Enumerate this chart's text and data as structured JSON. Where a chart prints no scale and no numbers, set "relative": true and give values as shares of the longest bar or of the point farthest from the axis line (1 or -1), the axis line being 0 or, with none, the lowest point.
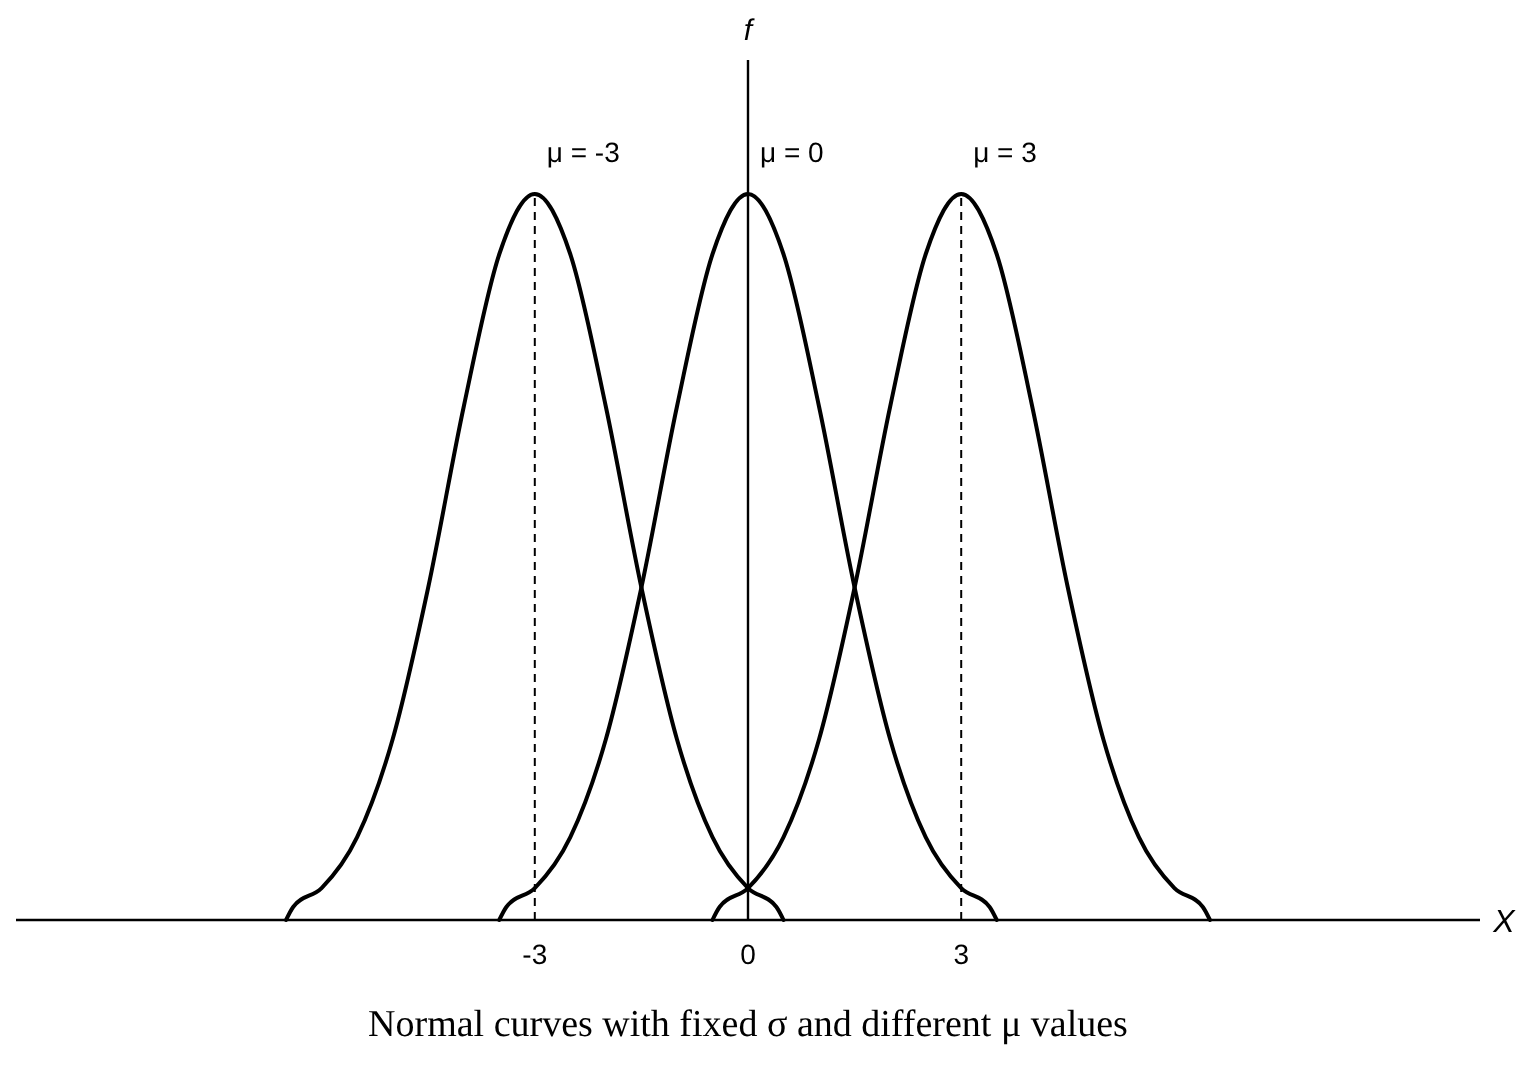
{
  "chart_data": {
    "type": "line",
    "relative": true,
    "title": "Normal curves with fixed σ and different μ values",
    "xlabel": "X",
    "ylabel": "f",
    "xlim": [
      -10.3,
      10.3
    ],
    "xticks": [
      -3,
      0,
      3
    ],
    "tick_labels": "x",
    "grid": false,
    "marker": "none",
    "line_style": "solid",
    "series": [
      {
        "color": "#000000",
        "x": [
          -6.5,
          -6.4,
          -6,
          -5.5,
          -5,
          -4.5,
          -4,
          -3.5,
          -3,
          -2.5,
          -2,
          -1.5,
          -1,
          -0.5,
          0,
          0.4,
          0.5
        ],
        "values": [
          0,
          0.018,
          0.044,
          0.114,
          0.249,
          0.458,
          0.707,
          0.917,
          1,
          0.917,
          0.707,
          0.458,
          0.249,
          0.114,
          0.044,
          0.018,
          0
        ]
      },
      {
        "color": "#000000",
        "x": [
          -3.5,
          -3.4,
          -3,
          -2.5,
          -2,
          -1.5,
          -1,
          -0.5,
          0,
          0.5,
          1,
          1.5,
          2,
          2.5,
          3,
          3.4,
          3.5
        ],
        "values": [
          0,
          0.018,
          0.044,
          0.114,
          0.249,
          0.458,
          0.707,
          0.917,
          1,
          0.917,
          0.707,
          0.458,
          0.249,
          0.114,
          0.044,
          0.018,
          0
        ]
      },
      {
        "color": "#000000",
        "x": [
          -0.5,
          -0.4,
          0,
          0.5,
          1,
          1.5,
          2,
          2.5,
          3,
          3.5,
          4,
          4.5,
          5,
          5.5,
          6,
          6.4,
          6.5
        ],
        "values": [
          0,
          0.018,
          0.044,
          0.114,
          0.249,
          0.458,
          0.707,
          0.917,
          1,
          0.917,
          0.707,
          0.458,
          0.249,
          0.114,
          0.044,
          0.018,
          0
        ]
      }
    ],
    "ref_lines": [
      {
        "axis": "x",
        "value": -3,
        "line_style": "dashed",
        "color": "#000000"
      },
      {
        "axis": "x",
        "value": 3,
        "line_style": "dashed",
        "color": "#000000"
      }
    ],
    "annotations": [
      {
        "text": "μ = -3",
        "x": -3,
        "y": 1
      },
      {
        "text": "μ = 0",
        "x": 0,
        "y": 1
      },
      {
        "text": "μ = 3",
        "x": 3,
        "y": 1
      }
    ]
  }
}
